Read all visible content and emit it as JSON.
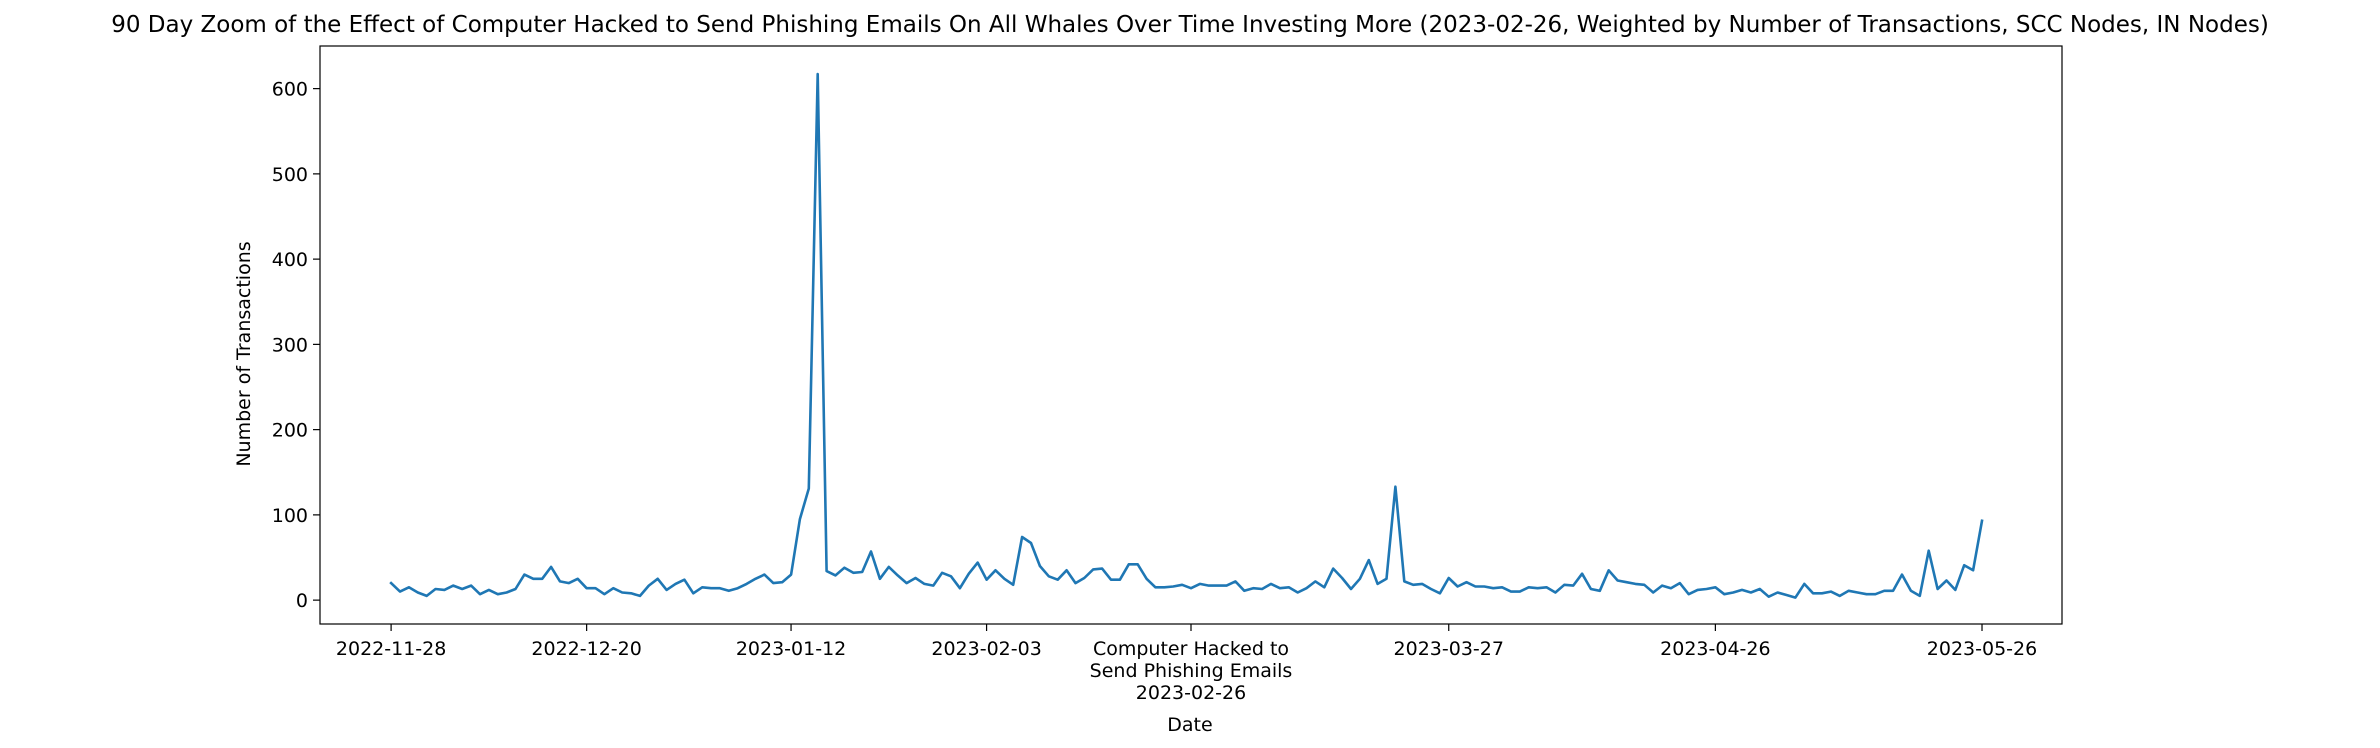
{
  "chart_data": {
    "type": "line",
    "title": "90 Day Zoom of the Effect of Computer Hacked to Send Phishing Emails On All Whales Over Time Investing More (2023-02-26, Weighted by Number of Transactions, SCC Nodes, IN Nodes)",
    "xlabel": "Date",
    "ylabel": "Number of Transactions",
    "ylim": [
      -28,
      650
    ],
    "xlim": [
      "2022-11-20",
      "2023-06-04"
    ],
    "yticks": [
      0,
      100,
      200,
      300,
      400,
      500,
      600
    ],
    "xticks": [
      {
        "date": "2022-11-28",
        "label": "2022-11-28"
      },
      {
        "date": "2022-12-20",
        "label": "2022-12-20"
      },
      {
        "date": "2023-01-12",
        "label": "2023-01-12"
      },
      {
        "date": "2023-02-03",
        "label": "2023-02-03"
      },
      {
        "date": "2023-02-26",
        "label": "Computer Hacked to\nSend Phishing Emails\n2023-02-26"
      },
      {
        "date": "2023-03-27",
        "label": "2023-03-27"
      },
      {
        "date": "2023-04-26",
        "label": "2023-04-26"
      },
      {
        "date": "2023-05-26",
        "label": "2023-05-26"
      }
    ],
    "grid": false,
    "series": [
      {
        "color": "#1f77b4",
        "start_date": "2022-11-28",
        "values": [
          20,
          10,
          15,
          9,
          5,
          13,
          12,
          17,
          13,
          17,
          7,
          12,
          7,
          9,
          13,
          30,
          25,
          25,
          39,
          22,
          20,
          25,
          14,
          14,
          7,
          14,
          9,
          8,
          5,
          17,
          25,
          12,
          19,
          24,
          8,
          15,
          14,
          14,
          11,
          14,
          19,
          25,
          30,
          20,
          21,
          30,
          95,
          131,
          617,
          34,
          29,
          38,
          32,
          33,
          57,
          25,
          39,
          29,
          20,
          26,
          19,
          17,
          32,
          28,
          14,
          31,
          44,
          24,
          35,
          25,
          18,
          74,
          67,
          40,
          28,
          24,
          35,
          20,
          26,
          36,
          37,
          24,
          24,
          42,
          42,
          25,
          15,
          15,
          16,
          18,
          14,
          19,
          17,
          17,
          17,
          22,
          11,
          14,
          13,
          19,
          14,
          15,
          9,
          14,
          22,
          15,
          37,
          26,
          13,
          25,
          47,
          19,
          25,
          133,
          22,
          18,
          19,
          13,
          8,
          26,
          16,
          21,
          16,
          16,
          14,
          15,
          10,
          10,
          15,
          14,
          15,
          9,
          18,
          17,
          31,
          13,
          11,
          35,
          23,
          21,
          19,
          18,
          9,
          17,
          14,
          20,
          7,
          12,
          13,
          15,
          7,
          9,
          12,
          9,
          13,
          4,
          9,
          6,
          3,
          19,
          8,
          8,
          10,
          5,
          11,
          9,
          7,
          7,
          11,
          11,
          30,
          11,
          5,
          58,
          13,
          23,
          12,
          41,
          35,
          93
        ]
      }
    ]
  }
}
